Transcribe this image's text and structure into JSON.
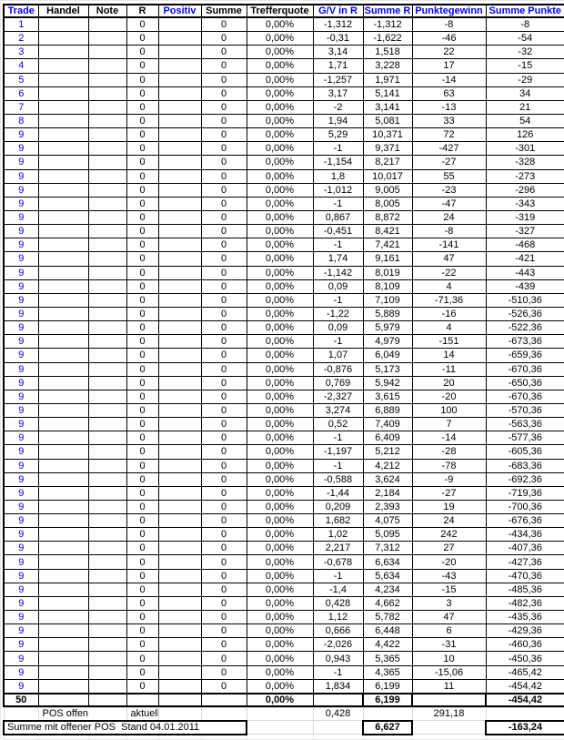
{
  "colors": {
    "header_accent_blue": "#0000ff",
    "text_black": "#000000",
    "grid_black": "#000000",
    "grid_light_gray": "#d9d9d9"
  },
  "table": {
    "headers": [
      {
        "label": "Trade",
        "blue": true
      },
      {
        "label": "Handel",
        "blue": false
      },
      {
        "label": "Note",
        "blue": false
      },
      {
        "label": "R",
        "blue": false
      },
      {
        "label": "Positiv",
        "blue": true
      },
      {
        "label": "Summe",
        "blue": false
      },
      {
        "label": "Trefferquote",
        "blue": false
      },
      {
        "label": "G/V in R",
        "blue": true
      },
      {
        "label": "Summe R",
        "blue": true
      },
      {
        "label": "Punktegewinn",
        "blue": true
      },
      {
        "label": "Summe Punkte",
        "blue": true
      }
    ],
    "row_columns": [
      "trade",
      "handel",
      "note",
      "r",
      "positiv",
      "summe",
      "trefferquote",
      "gv_in_r",
      "summe_r",
      "punktegewinn",
      "summe_punkte"
    ],
    "rows": [
      [
        "1",
        "",
        "",
        "0",
        "",
        "0",
        "0,00%",
        "-1,312",
        "-1,312",
        "-8",
        "-8"
      ],
      [
        "2",
        "",
        "",
        "0",
        "",
        "0",
        "0,00%",
        "-0,31",
        "-1,622",
        "-46",
        "-54"
      ],
      [
        "3",
        "",
        "",
        "0",
        "",
        "0",
        "0,00%",
        "3,14",
        "1,518",
        "22",
        "-32"
      ],
      [
        "4",
        "",
        "",
        "0",
        "",
        "0",
        "0,00%",
        "1,71",
        "3,228",
        "17",
        "-15"
      ],
      [
        "5",
        "",
        "",
        "0",
        "",
        "0",
        "0,00%",
        "-1,257",
        "1,971",
        "-14",
        "-29"
      ],
      [
        "6",
        "",
        "",
        "0",
        "",
        "0",
        "0,00%",
        "3,17",
        "5,141",
        "63",
        "34"
      ],
      [
        "7",
        "",
        "",
        "0",
        "",
        "0",
        "0,00%",
        "-2",
        "3,141",
        "-13",
        "21"
      ],
      [
        "8",
        "",
        "",
        "0",
        "",
        "0",
        "0,00%",
        "1,94",
        "5,081",
        "33",
        "54"
      ],
      [
        "9",
        "",
        "",
        "0",
        "",
        "0",
        "0,00%",
        "5,29",
        "10,371",
        "72",
        "126"
      ],
      [
        "9",
        "",
        "",
        "0",
        "",
        "0",
        "0,00%",
        "-1",
        "9,371",
        "-427",
        "-301"
      ],
      [
        "9",
        "",
        "",
        "0",
        "",
        "0",
        "0,00%",
        "-1,154",
        "8,217",
        "-27",
        "-328"
      ],
      [
        "9",
        "",
        "",
        "0",
        "",
        "0",
        "0,00%",
        "1,8",
        "10,017",
        "55",
        "-273"
      ],
      [
        "9",
        "",
        "",
        "0",
        "",
        "0",
        "0,00%",
        "-1,012",
        "9,005",
        "-23",
        "-296"
      ],
      [
        "9",
        "",
        "",
        "0",
        "",
        "0",
        "0,00%",
        "-1",
        "8,005",
        "-47",
        "-343"
      ],
      [
        "9",
        "",
        "",
        "0",
        "",
        "0",
        "0,00%",
        "0,867",
        "8,872",
        "24",
        "-319"
      ],
      [
        "9",
        "",
        "",
        "0",
        "",
        "0",
        "0,00%",
        "-0,451",
        "8,421",
        "-8",
        "-327"
      ],
      [
        "9",
        "",
        "",
        "0",
        "",
        "0",
        "0,00%",
        "-1",
        "7,421",
        "-141",
        "-468"
      ],
      [
        "9",
        "",
        "",
        "0",
        "",
        "0",
        "0,00%",
        "1,74",
        "9,161",
        "47",
        "-421"
      ],
      [
        "9",
        "",
        "",
        "0",
        "",
        "0",
        "0,00%",
        "-1,142",
        "8,019",
        "-22",
        "-443"
      ],
      [
        "9",
        "",
        "",
        "0",
        "",
        "0",
        "0,00%",
        "0,09",
        "8,109",
        "4",
        "-439"
      ],
      [
        "9",
        "",
        "",
        "0",
        "",
        "0",
        "0,00%",
        "-1",
        "7,109",
        "-71,36",
        "-510,36"
      ],
      [
        "9",
        "",
        "",
        "0",
        "",
        "0",
        "0,00%",
        "-1,22",
        "5,889",
        "-16",
        "-526,36"
      ],
      [
        "9",
        "",
        "",
        "0",
        "",
        "0",
        "0,00%",
        "0,09",
        "5,979",
        "4",
        "-522,36"
      ],
      [
        "9",
        "",
        "",
        "0",
        "",
        "0",
        "0,00%",
        "-1",
        "4,979",
        "-151",
        "-673,36"
      ],
      [
        "9",
        "",
        "",
        "0",
        "",
        "0",
        "0,00%",
        "1,07",
        "6,049",
        "14",
        "-659,36"
      ],
      [
        "9",
        "",
        "",
        "0",
        "",
        "0",
        "0,00%",
        "-0,876",
        "5,173",
        "-11",
        "-670,36"
      ],
      [
        "9",
        "",
        "",
        "0",
        "",
        "0",
        "0,00%",
        "0,769",
        "5,942",
        "20",
        "-650,36"
      ],
      [
        "9",
        "",
        "",
        "0",
        "",
        "0",
        "0,00%",
        "-2,327",
        "3,615",
        "-20",
        "-670,36"
      ],
      [
        "9",
        "",
        "",
        "0",
        "",
        "0",
        "0,00%",
        "3,274",
        "6,889",
        "100",
        "-570,36"
      ],
      [
        "9",
        "",
        "",
        "0",
        "",
        "0",
        "0,00%",
        "0,52",
        "7,409",
        "7",
        "-563,36"
      ],
      [
        "9",
        "",
        "",
        "0",
        "",
        "0",
        "0,00%",
        "-1",
        "6,409",
        "-14",
        "-577,36"
      ],
      [
        "9",
        "",
        "",
        "0",
        "",
        "0",
        "0,00%",
        "-1,197",
        "5,212",
        "-28",
        "-605,36"
      ],
      [
        "9",
        "",
        "",
        "0",
        "",
        "0",
        "0,00%",
        "-1",
        "4,212",
        "-78",
        "-683,36"
      ],
      [
        "9",
        "",
        "",
        "0",
        "",
        "0",
        "0,00%",
        "-0,588",
        "3,624",
        "-9",
        "-692,36"
      ],
      [
        "9",
        "",
        "",
        "0",
        "",
        "0",
        "0,00%",
        "-1,44",
        "2,184",
        "-27",
        "-719,36"
      ],
      [
        "9",
        "",
        "",
        "0",
        "",
        "0",
        "0,00%",
        "0,209",
        "2,393",
        "19",
        "-700,36"
      ],
      [
        "9",
        "",
        "",
        "0",
        "",
        "0",
        "0,00%",
        "1,682",
        "4,075",
        "24",
        "-676,36"
      ],
      [
        "9",
        "",
        "",
        "0",
        "",
        "0",
        "0,00%",
        "1,02",
        "5,095",
        "242",
        "-434,36"
      ],
      [
        "9",
        "",
        "",
        "0",
        "",
        "0",
        "0,00%",
        "2,217",
        "7,312",
        "27",
        "-407,36"
      ],
      [
        "9",
        "",
        "",
        "0",
        "",
        "0",
        "0,00%",
        "-0,678",
        "6,634",
        "-20",
        "-427,36"
      ],
      [
        "9",
        "",
        "",
        "0",
        "",
        "0",
        "0,00%",
        "-1",
        "5,634",
        "-43",
        "-470,36"
      ],
      [
        "9",
        "",
        "",
        "0",
        "",
        "0",
        "0,00%",
        "-1,4",
        "4,234",
        "-15",
        "-485,36"
      ],
      [
        "9",
        "",
        "",
        "0",
        "",
        "0",
        "0,00%",
        "0,428",
        "4,662",
        "3",
        "-482,36"
      ],
      [
        "9",
        "",
        "",
        "0",
        "",
        "0",
        "0,00%",
        "1,12",
        "5,782",
        "47",
        "-435,36"
      ],
      [
        "9",
        "",
        "",
        "0",
        "",
        "0",
        "0,00%",
        "0,666",
        "6,448",
        "6",
        "-429,36"
      ],
      [
        "9",
        "",
        "",
        "0",
        "",
        "0",
        "0,00%",
        "-2,026",
        "4,422",
        "-31",
        "-460,36"
      ],
      [
        "9",
        "",
        "",
        "0",
        "",
        "0",
        "0,00%",
        "0,943",
        "5,365",
        "10",
        "-450,36"
      ],
      [
        "9",
        "",
        "",
        "0",
        "",
        "0",
        "0,00%",
        "-1",
        "4,365",
        "-15,06",
        "-465,42"
      ],
      [
        "9",
        "",
        "",
        "0",
        "",
        "0",
        "0,00%",
        "1,834",
        "6,199",
        "11",
        "-454,42"
      ]
    ],
    "summary_row": {
      "trade": "50",
      "quote": "0,00%",
      "summe_r": "6,199",
      "summe_punkte": "-454,42"
    },
    "open_pos_row": {
      "handel": "POS offen",
      "r": "aktuell",
      "gv_in_r": "0,428",
      "punktegewinn": "291,18"
    },
    "total_row": {
      "label": "Summe mit offener POS  Stand 04.01.2011",
      "summe_r": "6,627",
      "summe_punkte": "-163,24"
    }
  }
}
